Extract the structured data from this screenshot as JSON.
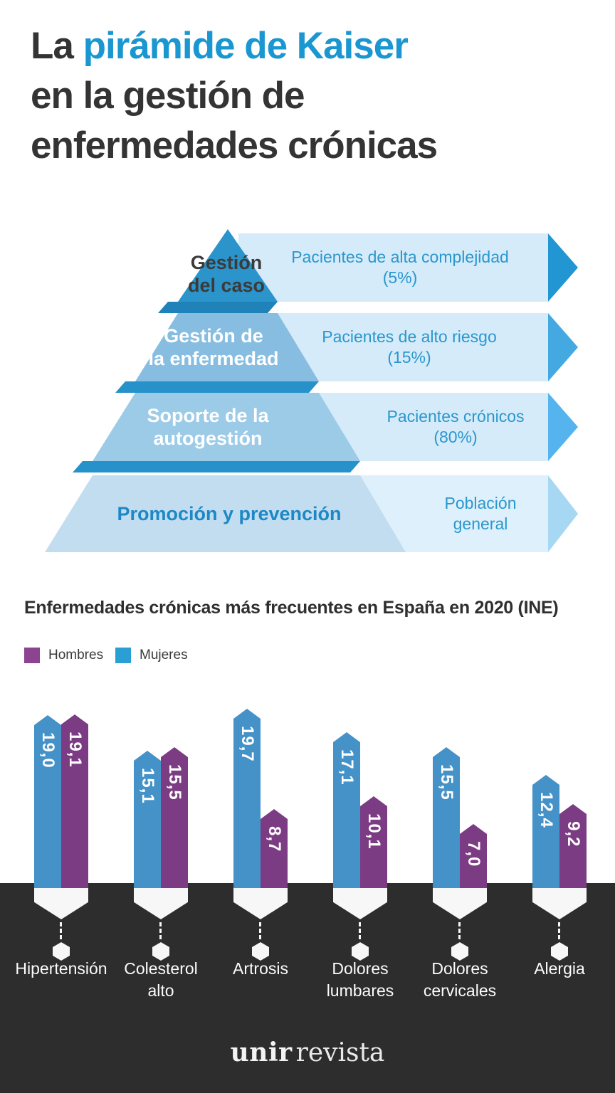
{
  "main_title": {
    "line1_dark": "La",
    "line1_blue": "pirámide de Kaiser",
    "line2": "en la gestión de",
    "line3": "enfermedades crónicas"
  },
  "pyramid": {
    "levels": [
      {
        "name_line1": "Gestión",
        "name_line2": "del caso",
        "patient_line1": "Pacientes de alta complejidad",
        "patient_line2": "(5%)"
      },
      {
        "name_line1": "Gestión de",
        "name_line2": "la enfermedad",
        "patient_line1": "Pacientes de alto riesgo",
        "patient_line2": "(15%)"
      },
      {
        "name_line1": "Soporte de la",
        "name_line2": "autogestión",
        "patient_line1": "Pacientes crónicos",
        "patient_line2": "(80%)"
      },
      {
        "name_line1": "Promoción y prevención",
        "patient_line1": "Población",
        "patient_line2": "general"
      }
    ]
  },
  "chart_data": {
    "type": "bar",
    "title": "Enfermedades crónicas más frecuentes en España en 2020 (INE)",
    "categories": [
      "Hipertensión",
      "Colesterol alto",
      "Artrosis",
      "Dolores lumbares",
      "Dolores cervicales",
      "Alergia"
    ],
    "category_lines": [
      [
        "Hipertensión"
      ],
      [
        "Colesterol",
        "alto"
      ],
      [
        "Artrosis"
      ],
      [
        "Dolores",
        "lumbares"
      ],
      [
        "Dolores",
        "cervicales"
      ],
      [
        "Alergia"
      ]
    ],
    "series": [
      {
        "name": "Mujeres",
        "color": "#4492c8",
        "values": [
          19.0,
          15.1,
          19.7,
          17.1,
          15.5,
          12.4
        ],
        "labels": [
          "19,0",
          "15,1",
          "19,7",
          "17,1",
          "15,5",
          "12,4"
        ]
      },
      {
        "name": "Hombres",
        "color": "#7c3c84",
        "values": [
          19.1,
          15.5,
          8.7,
          10.1,
          7.0,
          9.2
        ],
        "labels": [
          "19,1",
          "15,5",
          "8,7",
          "10,1",
          "7,0",
          "9,2"
        ]
      }
    ],
    "legend": [
      {
        "label": "Hombres",
        "color": "#8c4491"
      },
      {
        "label": "Mujeres",
        "color": "#299fd5"
      }
    ],
    "legend_position": "top-left",
    "ylim": [
      0,
      19.7
    ],
    "grid": false,
    "xlabel": "",
    "ylabel": ""
  },
  "footer": {
    "brand_bold": "unir",
    "brand_light": "revista"
  },
  "colors": {
    "accent_blue": "#1a97d1",
    "dark_text": "#343434",
    "band_fill": "#d5ebf9",
    "band_fill_light": "#def0fb",
    "band_text": "#2a97cd",
    "level1_fill": "#2b94ca",
    "level2_fill": "#87bde1",
    "level3_fill": "#9ccbe7",
    "level4_fill": "#c3ddf0",
    "edge_dark": "#1f83ba",
    "edge_mid": "#2791c9",
    "arrow1": "#2196d3",
    "arrow2": "#45a9e1",
    "arrow3": "#55b4ee",
    "arrow4": "#a6d8f4",
    "bar_mujeres": "#4492c8",
    "bar_hombres": "#7c3c84",
    "dark_band_bg": "#2e2d2e"
  }
}
